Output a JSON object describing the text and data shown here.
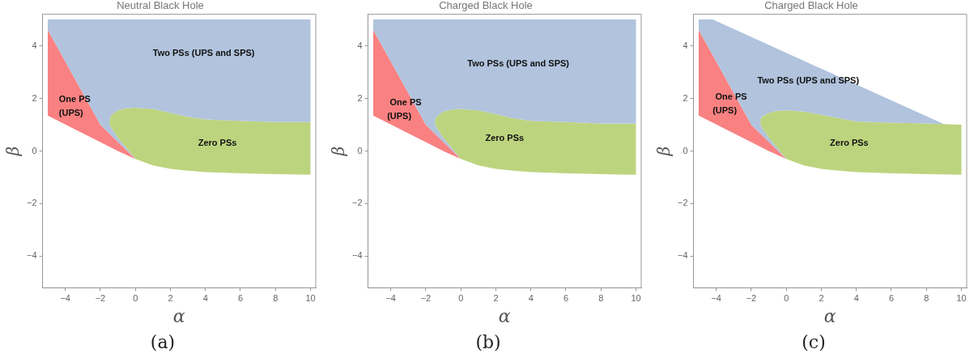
{
  "chart_data": [
    {
      "type": "area",
      "title": "Neutral Black Hole",
      "xlabel": "α",
      "ylabel": "β",
      "xlim": [
        -5.3,
        10.3
      ],
      "ylim": [
        -5.2,
        5.2
      ],
      "xticks": [
        -4,
        -2,
        0,
        2,
        4,
        6,
        8,
        10
      ],
      "yticks": [
        -4,
        -2,
        0,
        2,
        4
      ],
      "grid": false,
      "legend": false,
      "series": [
        {
          "color": "#b1c3dd",
          "x": [
            -5,
            10,
            10,
            8,
            6,
            4,
            3,
            2,
            1,
            0,
            -0.5,
            -1,
            -1.4,
            -1.5,
            -1.4,
            -1,
            -0.5,
            0,
            -1,
            -2,
            -5
          ],
          "values": [
            5,
            5,
            1.1,
            1.1,
            1.15,
            1.2,
            1.3,
            1.45,
            1.6,
            1.65,
            1.63,
            1.55,
            1.35,
            1.1,
            0.9,
            0.5,
            0.1,
            -0.3,
            0.35,
            1.0,
            4.6
          ]
        },
        {
          "color": "#f98181",
          "x": [
            -5,
            -2,
            -1,
            0,
            -1,
            -2,
            -5
          ],
          "values": [
            4.6,
            1.0,
            0.35,
            -0.3,
            0,
            0.34,
            1.35
          ]
        },
        {
          "color": "#bdd47f",
          "x": [
            -1.5,
            -1.4,
            -1,
            -0.5,
            0,
            1,
            2,
            3,
            4,
            6,
            8,
            10,
            10,
            8,
            6,
            4,
            3,
            2,
            1,
            0,
            -0.5,
            -1,
            -1.4
          ],
          "values": [
            1.1,
            1.35,
            1.55,
            1.63,
            1.65,
            1.6,
            1.45,
            1.3,
            1.2,
            1.15,
            1.1,
            1.1,
            -0.9,
            -0.88,
            -0.85,
            -0.8,
            -0.75,
            -0.68,
            -0.55,
            -0.3,
            0.1,
            0.5,
            0.9
          ]
        }
      ],
      "annotations": [
        "Two PSs (UPS and SPS)",
        "One PS",
        "(UPS)",
        "Zero PSs",
        "(a)"
      ]
    },
    {
      "type": "area",
      "title": "Charged Black Hole",
      "xlabel": "α",
      "ylabel": "β",
      "xlim": [
        -5.3,
        10.3
      ],
      "ylim": [
        -5.2,
        5.2
      ],
      "xticks": [
        -4,
        -2,
        0,
        2,
        4,
        6,
        8,
        10
      ],
      "yticks": [
        -4,
        -2,
        0,
        2,
        4
      ],
      "grid": false,
      "legend": false,
      "series": [
        {
          "color": "#b1c3dd",
          "x": [
            -5,
            10,
            10,
            8,
            6,
            4,
            3,
            2,
            1,
            0,
            -0.5,
            -1,
            -1.4,
            -1.5,
            -1.4,
            -1,
            -0.5,
            0,
            -1,
            -2,
            -5
          ],
          "values": [
            5,
            5,
            1.05,
            1.05,
            1.1,
            1.15,
            1.25,
            1.4,
            1.55,
            1.6,
            1.58,
            1.5,
            1.3,
            1.1,
            0.9,
            0.5,
            0.1,
            -0.3,
            0.35,
            1.0,
            4.6
          ]
        },
        {
          "color": "#f98181",
          "x": [
            -5,
            -2,
            -1,
            0,
            -1,
            -2,
            -5
          ],
          "values": [
            4.6,
            1.0,
            0.35,
            -0.3,
            0,
            0.34,
            1.35
          ]
        },
        {
          "color": "#bdd47f",
          "x": [
            -1.5,
            -1.4,
            -1,
            -0.5,
            0,
            1,
            2,
            3,
            4,
            6,
            8,
            10,
            10,
            8,
            6,
            4,
            3,
            2,
            1,
            0,
            -0.5,
            -1,
            -1.4
          ],
          "values": [
            1.1,
            1.3,
            1.5,
            1.58,
            1.6,
            1.55,
            1.4,
            1.25,
            1.15,
            1.1,
            1.05,
            1.05,
            -0.9,
            -0.88,
            -0.85,
            -0.8,
            -0.75,
            -0.68,
            -0.55,
            -0.3,
            0.1,
            0.5,
            0.9
          ]
        }
      ],
      "annotations": [
        "Two PSs (UPS and SPS)",
        "One PS",
        "(UPS)",
        "Zero PSs",
        "(b)"
      ]
    },
    {
      "type": "area",
      "title": "Charged Black Hole",
      "xlabel": "α",
      "ylabel": "β",
      "xlim": [
        -5.3,
        10.3
      ],
      "ylim": [
        -5.2,
        5.2
      ],
      "xticks": [
        -4,
        -2,
        0,
        2,
        4,
        6,
        8,
        10
      ],
      "yticks": [
        -4,
        -2,
        0,
        2,
        4
      ],
      "grid": false,
      "legend": false,
      "series": [
        {
          "color": "#b1c3dd",
          "x": [
            -5,
            -4.2,
            9,
            8,
            6,
            4,
            3,
            2,
            1,
            0,
            -0.5,
            -1,
            -1.4,
            -1.5,
            -1.4,
            -1,
            -0.5,
            0,
            -1,
            -2,
            -5
          ],
          "values": [
            5,
            5,
            1.02,
            1.05,
            1.08,
            1.12,
            1.25,
            1.38,
            1.5,
            1.55,
            1.53,
            1.45,
            1.3,
            1.1,
            0.9,
            0.5,
            0.1,
            -0.3,
            0.35,
            1.0,
            4.6
          ]
        },
        {
          "color": "#f98181",
          "x": [
            -5,
            -2,
            -1,
            0,
            -1,
            -2,
            -5
          ],
          "values": [
            4.6,
            1.0,
            0.35,
            -0.3,
            0,
            0.34,
            1.35
          ]
        },
        {
          "color": "#bdd47f",
          "x": [
            -1.5,
            -1.4,
            -1,
            -0.5,
            0,
            1,
            2,
            3,
            4,
            6,
            8,
            10,
            10,
            8,
            6,
            4,
            3,
            2,
            1,
            0,
            -0.5,
            -1,
            -1.4
          ],
          "values": [
            1.1,
            1.3,
            1.45,
            1.53,
            1.55,
            1.5,
            1.38,
            1.25,
            1.12,
            1.08,
            1.05,
            1.0,
            -0.9,
            -0.88,
            -0.85,
            -0.8,
            -0.75,
            -0.68,
            -0.55,
            -0.3,
            0.1,
            0.5,
            0.9
          ]
        }
      ],
      "annotations": [
        "Two PSs (UPS and SPS)",
        "One PS",
        "(UPS)",
        "Zero PSs",
        "(c)"
      ]
    }
  ]
}
